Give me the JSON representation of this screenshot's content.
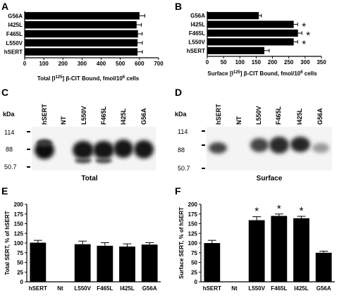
{
  "panels": {
    "A": "A",
    "B": "B",
    "C": "C",
    "D": "D",
    "E": "E",
    "F": "F"
  },
  "chart_data": [
    {
      "id": "A",
      "type": "bar",
      "orientation": "horizontal",
      "categories": [
        "G56A",
        "I425L",
        "F465L",
        "L550V",
        "hSERT"
      ],
      "values": [
        600,
        585,
        592,
        590,
        590
      ],
      "errors": [
        28,
        25,
        22,
        25,
        25
      ],
      "xlim": [
        0,
        700
      ],
      "xticks": [
        0,
        100,
        200,
        300,
        400,
        500,
        600,
        700
      ],
      "xlabel_html": "Total [I<sup>125</sup>] β-CIT Bound, fmol/10<sup>6</sup> cells",
      "xlabel": {
        "pre": "Total [I",
        "sup1": "125",
        "mid": "] β-CIT Bound, fmol/10",
        "sup2": "6",
        "post": " cells"
      },
      "significant": []
    },
    {
      "id": "B",
      "type": "bar",
      "orientation": "horizontal",
      "categories": [
        "G56A",
        "I425L",
        "F465L",
        "L550V",
        "hSERT"
      ],
      "values": [
        158,
        265,
        278,
        265,
        175
      ],
      "errors": [
        8,
        12,
        12,
        12,
        15
      ],
      "xlim": [
        0,
        350
      ],
      "xticks": [
        0,
        50,
        100,
        150,
        200,
        250,
        300,
        350
      ],
      "xlabel": {
        "pre": "Surface [I",
        "sup1": "125",
        "mid": "] β-CIT Bound, fmol/10",
        "sup2": "6",
        "post": " cells"
      },
      "significant": [
        "I425L",
        "F465L",
        "L550V"
      ],
      "marker": "*"
    },
    {
      "id": "E",
      "type": "bar",
      "categories": [
        "hSERT",
        "Nt",
        "L550V",
        "F465L",
        "I425L",
        "G56A"
      ],
      "values": [
        101,
        0,
        97,
        93,
        91,
        96
      ],
      "errors": [
        6,
        0,
        8,
        8,
        7,
        5
      ],
      "ylim": [
        0,
        200
      ],
      "yticks": [
        0,
        25,
        50,
        75,
        100,
        125,
        150,
        175,
        200
      ],
      "ylabel": "Total SERT, % of hSERT",
      "significant": []
    },
    {
      "id": "F",
      "type": "bar",
      "categories": [
        "hSERT",
        "Nt",
        "L550V",
        "F465L",
        "I425L",
        "G56A"
      ],
      "values": [
        100,
        0,
        159,
        170,
        164,
        75
      ],
      "errors": [
        7,
        0,
        9,
        5,
        5,
        4
      ],
      "ylim": [
        0,
        200
      ],
      "yticks": [
        0,
        25,
        50,
        75,
        100,
        125,
        150,
        175,
        200
      ],
      "ylabel": "Surface SERT, % of hSERT",
      "significant": [
        "L550V",
        "F465L",
        "I425L"
      ],
      "marker": "*"
    }
  ],
  "blots": {
    "C": {
      "lanes": [
        "hSERT",
        "NT",
        "L550V",
        "F465L",
        "I425L",
        "G56A"
      ],
      "kda_label": "kDa",
      "markers": [
        "114",
        "88",
        "50.7"
      ],
      "caption": "Total"
    },
    "D": {
      "lanes": [
        "hSERT",
        "NT",
        "L550V",
        "F465L",
        "I425L",
        "G56A"
      ],
      "kda_label": "kDa",
      "markers": [
        "114",
        "88",
        "50.7"
      ],
      "caption": "Surface"
    }
  }
}
